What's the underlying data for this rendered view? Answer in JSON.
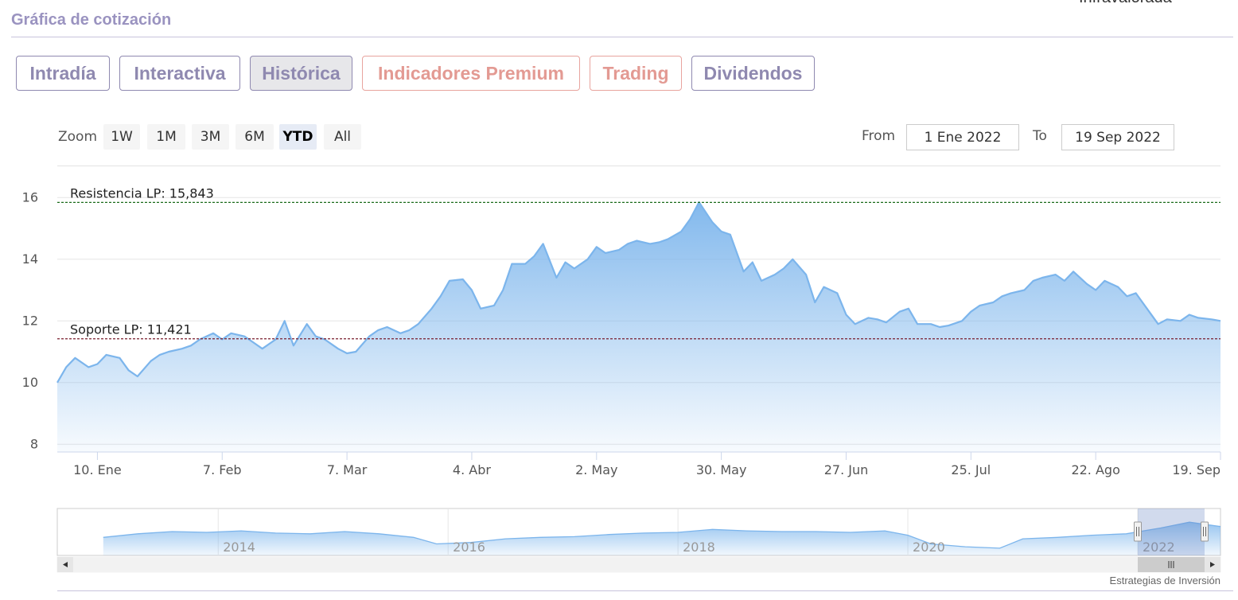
{
  "header": {
    "title": "Gráfica de cotización",
    "topright_text": "Infravalorada"
  },
  "tabs": [
    {
      "label": "Intradía",
      "active": false,
      "premium": false
    },
    {
      "label": "Interactiva",
      "active": false,
      "premium": false
    },
    {
      "label": "Histórica",
      "active": true,
      "premium": false
    },
    {
      "label": "Indicadores Premium",
      "active": false,
      "premium": true
    },
    {
      "label": "Trading",
      "active": false,
      "premium": true
    },
    {
      "label": "Dividendos",
      "active": false,
      "premium": false
    }
  ],
  "zoom": {
    "label": "Zoom",
    "buttons": [
      "1W",
      "1M",
      "3M",
      "6M",
      "YTD",
      "All"
    ],
    "selected": "YTD"
  },
  "range": {
    "from_label": "From",
    "from_value": "1 Ene 2022",
    "to_label": "To",
    "to_value": "19 Sep 2022"
  },
  "chart_data": {
    "type": "area",
    "title": "",
    "xlabel": "",
    "ylabel": "",
    "ylim": [
      7.75,
      16.6
    ],
    "yticks": [
      8,
      10,
      12,
      14,
      16
    ],
    "xlim": [
      1,
      262
    ],
    "xticks": [
      {
        "label": "10. Ene",
        "day": 10
      },
      {
        "label": "7. Feb",
        "day": 38
      },
      {
        "label": "7. Mar",
        "day": 66
      },
      {
        "label": "4. Abr",
        "day": 94
      },
      {
        "label": "2. May",
        "day": 122
      },
      {
        "label": "30. May",
        "day": 150
      },
      {
        "label": "27. Jun",
        "day": 178
      },
      {
        "label": "25. Jul",
        "day": 206
      },
      {
        "label": "22. Ago",
        "day": 234
      },
      {
        "label": "19. Sep",
        "day": 262
      }
    ],
    "grid": true,
    "color": "#7cb5ec",
    "x": [
      1,
      3,
      5,
      8,
      10,
      12,
      15,
      17,
      19,
      22,
      24,
      26,
      29,
      31,
      33,
      36,
      38,
      40,
      43,
      45,
      47,
      50,
      52,
      54,
      57,
      59,
      61,
      64,
      66,
      68,
      71,
      73,
      75,
      78,
      80,
      82,
      85,
      87,
      89,
      92,
      94,
      96,
      99,
      101,
      103,
      106,
      108,
      110,
      113,
      115,
      117,
      120,
      122,
      124,
      127,
      129,
      131,
      134,
      136,
      138,
      141,
      143,
      145,
      148,
      150,
      152,
      155,
      157,
      159,
      162,
      164,
      166,
      169,
      171,
      173,
      176,
      178,
      180,
      183,
      185,
      187,
      190,
      192,
      194,
      197,
      199,
      201,
      204,
      206,
      208,
      211,
      213,
      215,
      218,
      220,
      222,
      225,
      227,
      229,
      232,
      234,
      236,
      239,
      241,
      243,
      246,
      248,
      250,
      253,
      255,
      257,
      260,
      262
    ],
    "values": [
      10.0,
      10.5,
      10.8,
      10.5,
      10.6,
      10.9,
      10.8,
      10.4,
      10.2,
      10.7,
      10.9,
      11.0,
      11.1,
      11.2,
      11.4,
      11.6,
      11.4,
      11.6,
      11.5,
      11.3,
      11.1,
      11.4,
      12.0,
      11.2,
      11.9,
      11.5,
      11.4,
      11.1,
      10.95,
      11.0,
      11.5,
      11.7,
      11.8,
      11.6,
      11.7,
      11.9,
      12.4,
      12.8,
      13.3,
      13.35,
      13.0,
      12.4,
      12.5,
      13.0,
      13.85,
      13.85,
      14.1,
      14.5,
      13.4,
      13.9,
      13.7,
      14.0,
      14.4,
      14.2,
      14.3,
      14.5,
      14.6,
      14.5,
      14.55,
      14.65,
      14.9,
      15.3,
      15.85,
      15.2,
      14.9,
      14.8,
      13.6,
      13.9,
      13.3,
      13.5,
      13.7,
      14.0,
      13.5,
      12.6,
      13.1,
      12.9,
      12.2,
      11.9,
      12.1,
      12.05,
      11.95,
      12.3,
      12.4,
      11.9,
      11.9,
      11.8,
      11.85,
      12.0,
      12.3,
      12.5,
      12.6,
      12.8,
      12.9,
      13.0,
      13.3,
      13.4,
      13.5,
      13.3,
      13.6,
      13.2,
      13.0,
      13.3,
      13.1,
      12.8,
      12.9,
      12.3,
      11.9,
      12.05,
      12.0,
      12.2,
      12.1,
      12.05,
      12.0
    ],
    "plot_lines": [
      {
        "label": "Resistencia LP: 15,843",
        "value": 15.843,
        "color": "#1a6b1a"
      },
      {
        "label": "Soporte LP: 11,421",
        "value": 11.421,
        "color": "#7a1f2f"
      }
    ],
    "navigator": {
      "year_labels": [
        {
          "label": "2014",
          "t": 2014
        },
        {
          "label": "2016",
          "t": 2016
        },
        {
          "label": "2018",
          "t": 2018
        },
        {
          "label": "2020",
          "t": 2020
        },
        {
          "label": "2022",
          "t": 2022
        }
      ],
      "xlim": [
        2012.6,
        2022.72
      ],
      "t": [
        2013.0,
        2013.3,
        2013.6,
        2013.9,
        2014.2,
        2014.5,
        2014.8,
        2015.1,
        2015.4,
        2015.7,
        2015.9,
        2016.2,
        2016.5,
        2016.8,
        2017.1,
        2017.4,
        2017.7,
        2018.0,
        2018.3,
        2018.6,
        2018.9,
        2019.2,
        2019.5,
        2019.8,
        2020.0,
        2020.2,
        2020.5,
        2020.8,
        2021.0,
        2021.3,
        2021.6,
        2021.9,
        2022.2,
        2022.45,
        2022.72
      ],
      "values": [
        10.5,
        11.0,
        11.3,
        11.2,
        11.4,
        11.1,
        11.0,
        11.3,
        11.0,
        10.5,
        9.6,
        9.8,
        10.3,
        10.5,
        10.6,
        10.9,
        11.1,
        11.2,
        11.6,
        11.4,
        11.3,
        11.3,
        11.2,
        11.4,
        10.8,
        9.6,
        9.2,
        9.0,
        10.3,
        10.5,
        10.8,
        11.0,
        11.8,
        12.6,
        12.0
      ],
      "selection": [
        2022.0,
        2022.72
      ]
    }
  },
  "credits": "Estrategias de Inversión"
}
